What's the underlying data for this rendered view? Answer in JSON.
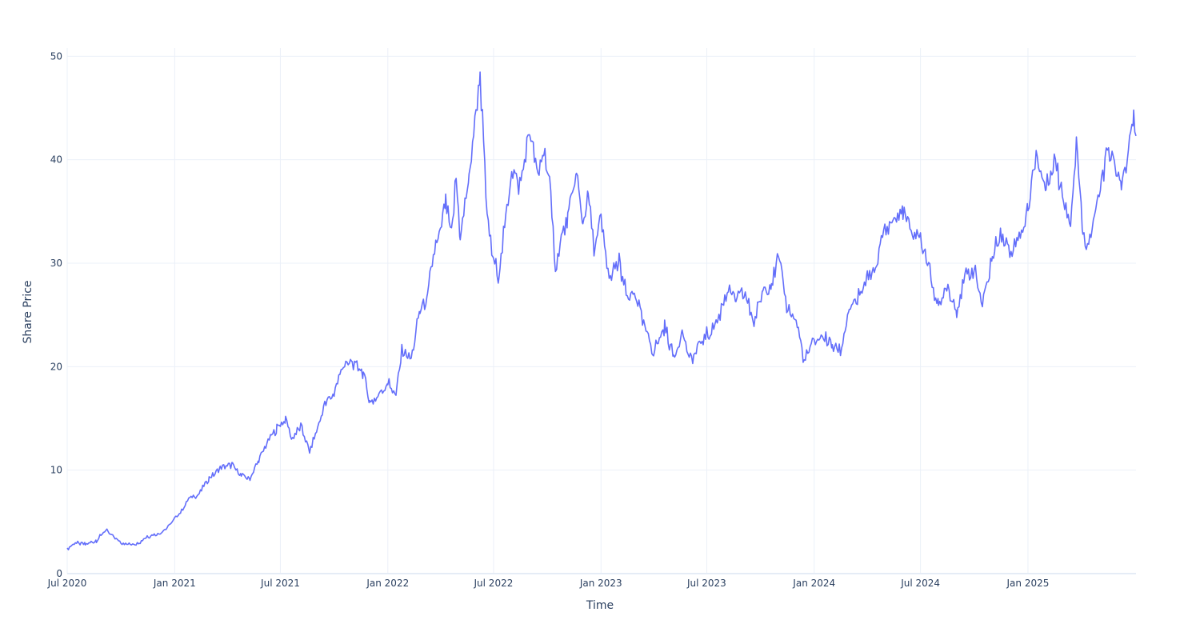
{
  "chart_data": {
    "type": "line",
    "title": "",
    "xlabel": "Time",
    "ylabel": "Share Price",
    "xlim": [
      "2020-07-01",
      "2025-07-01"
    ],
    "ylim": [
      0,
      50.8
    ],
    "grid": true,
    "legend": "none",
    "x_ticks": [
      {
        "date": "2020-07-01",
        "label": "Jul 2020"
      },
      {
        "date": "2021-01-01",
        "label": "Jan 2021"
      },
      {
        "date": "2021-07-01",
        "label": "Jul 2021"
      },
      {
        "date": "2022-01-01",
        "label": "Jan 2022"
      },
      {
        "date": "2022-07-01",
        "label": "Jul 2022"
      },
      {
        "date": "2023-01-01",
        "label": "Jan 2023"
      },
      {
        "date": "2023-07-01",
        "label": "Jul 2023"
      },
      {
        "date": "2024-01-01",
        "label": "Jan 2024"
      },
      {
        "date": "2024-07-01",
        "label": "Jul 2024"
      },
      {
        "date": "2025-01-01",
        "label": "Jan 2025"
      }
    ],
    "y_ticks": [
      {
        "value": 0,
        "label": "0"
      },
      {
        "value": 10,
        "label": "10"
      },
      {
        "value": 20,
        "label": "20"
      },
      {
        "value": 30,
        "label": "30"
      },
      {
        "value": 40,
        "label": "40"
      },
      {
        "value": 50,
        "label": "50"
      }
    ],
    "series": [
      {
        "color": "#636efa",
        "points": [
          [
            "2020-07-01",
            2.4
          ],
          [
            "2020-07-15",
            3.0
          ],
          [
            "2020-08-01",
            2.8
          ],
          [
            "2020-08-20",
            3.2
          ],
          [
            "2020-09-05",
            4.2
          ],
          [
            "2020-09-15",
            3.7
          ],
          [
            "2020-10-01",
            3.0
          ],
          [
            "2020-10-15",
            2.8
          ],
          [
            "2020-11-01",
            3.0
          ],
          [
            "2020-11-15",
            3.6
          ],
          [
            "2020-12-01",
            3.8
          ],
          [
            "2020-12-15",
            4.2
          ],
          [
            "2021-01-01",
            5.3
          ],
          [
            "2021-01-15",
            6.2
          ],
          [
            "2021-01-25",
            7.3
          ],
          [
            "2021-02-10",
            7.6
          ],
          [
            "2021-03-01",
            9.2
          ],
          [
            "2021-03-20",
            10.2
          ],
          [
            "2021-04-10",
            10.5
          ],
          [
            "2021-04-25",
            9.5
          ],
          [
            "2021-05-10",
            9.2
          ],
          [
            "2021-05-25",
            11.0
          ],
          [
            "2021-06-10",
            12.8
          ],
          [
            "2021-06-25",
            14.0
          ],
          [
            "2021-07-10",
            15.0
          ],
          [
            "2021-07-20",
            13.0
          ],
          [
            "2021-08-05",
            14.2
          ],
          [
            "2021-08-20",
            11.8
          ],
          [
            "2021-09-01",
            13.8
          ],
          [
            "2021-09-15",
            16.4
          ],
          [
            "2021-10-01",
            17.5
          ],
          [
            "2021-10-15",
            20.0
          ],
          [
            "2021-11-01",
            20.5
          ],
          [
            "2021-11-20",
            19.5
          ],
          [
            "2021-12-01",
            16.5
          ],
          [
            "2021-12-15",
            17.2
          ],
          [
            "2022-01-01",
            18.5
          ],
          [
            "2022-01-15",
            17.2
          ],
          [
            "2022-01-25",
            21.5
          ],
          [
            "2022-02-10",
            20.8
          ],
          [
            "2022-02-25",
            25.5
          ],
          [
            "2022-03-10",
            26.5
          ],
          [
            "2022-03-20",
            31.0
          ],
          [
            "2022-04-01",
            33.0
          ],
          [
            "2022-04-10",
            36.0
          ],
          [
            "2022-04-20",
            32.5
          ],
          [
            "2022-04-28",
            38.5
          ],
          [
            "2022-05-05",
            32.5
          ],
          [
            "2022-05-20",
            38.0
          ],
          [
            "2022-06-01",
            45.0
          ],
          [
            "2022-06-08",
            48.3
          ],
          [
            "2022-06-20",
            34.5
          ],
          [
            "2022-07-01",
            30.0
          ],
          [
            "2022-07-10",
            29.0
          ],
          [
            "2022-07-20",
            33.5
          ],
          [
            "2022-08-01",
            39.0
          ],
          [
            "2022-08-15",
            37.5
          ],
          [
            "2022-09-01",
            43.0
          ],
          [
            "2022-09-15",
            38.0
          ],
          [
            "2022-09-25",
            41.0
          ],
          [
            "2022-10-05",
            37.5
          ],
          [
            "2022-10-15",
            29.5
          ],
          [
            "2022-10-25",
            32.5
          ],
          [
            "2022-11-05",
            34.0
          ],
          [
            "2022-11-20",
            39.0
          ],
          [
            "2022-12-01",
            34.0
          ],
          [
            "2022-12-10",
            36.5
          ],
          [
            "2022-12-20",
            31.5
          ],
          [
            "2023-01-01",
            34.0
          ],
          [
            "2023-01-15",
            28.5
          ],
          [
            "2023-02-01",
            30.0
          ],
          [
            "2023-02-15",
            26.5
          ],
          [
            "2023-03-01",
            27.0
          ],
          [
            "2023-03-15",
            24.0
          ],
          [
            "2023-04-01",
            21.5
          ],
          [
            "2023-04-20",
            23.8
          ],
          [
            "2023-05-05",
            21.0
          ],
          [
            "2023-05-20",
            23.5
          ],
          [
            "2023-06-01",
            20.5
          ],
          [
            "2023-06-15",
            21.8
          ],
          [
            "2023-07-01",
            23.0
          ],
          [
            "2023-07-20",
            24.5
          ],
          [
            "2023-08-05",
            27.5
          ],
          [
            "2023-08-20",
            26.5
          ],
          [
            "2023-09-05",
            27.0
          ],
          [
            "2023-09-20",
            24.0
          ],
          [
            "2023-10-05",
            27.5
          ],
          [
            "2023-10-20",
            28.0
          ],
          [
            "2023-11-01",
            30.5
          ],
          [
            "2023-11-15",
            26.0
          ],
          [
            "2023-12-01",
            24.5
          ],
          [
            "2023-12-15",
            20.5
          ],
          [
            "2024-01-01",
            22.5
          ],
          [
            "2024-01-15",
            23.0
          ],
          [
            "2024-02-01",
            22.0
          ],
          [
            "2024-02-15",
            21.5
          ],
          [
            "2024-03-01",
            25.5
          ],
          [
            "2024-03-15",
            26.5
          ],
          [
            "2024-04-01",
            28.5
          ],
          [
            "2024-04-15",
            29.5
          ],
          [
            "2024-05-01",
            33.5
          ],
          [
            "2024-05-15",
            34.0
          ],
          [
            "2024-06-01",
            35.0
          ],
          [
            "2024-06-15",
            33.0
          ],
          [
            "2024-07-01",
            32.5
          ],
          [
            "2024-07-15",
            29.5
          ],
          [
            "2024-08-01",
            25.5
          ],
          [
            "2024-08-15",
            28.0
          ],
          [
            "2024-09-01",
            25.5
          ],
          [
            "2024-09-15",
            28.5
          ],
          [
            "2024-10-01",
            29.5
          ],
          [
            "2024-10-15",
            26.0
          ],
          [
            "2024-11-01",
            30.5
          ],
          [
            "2024-11-15",
            33.0
          ],
          [
            "2024-12-01",
            31.0
          ],
          [
            "2024-12-15",
            32.5
          ],
          [
            "2025-01-01",
            35.0
          ],
          [
            "2025-01-15",
            40.5
          ],
          [
            "2025-02-01",
            37.0
          ],
          [
            "2025-02-15",
            40.0
          ],
          [
            "2025-03-01",
            36.5
          ],
          [
            "2025-03-15",
            34.0
          ],
          [
            "2025-03-25",
            41.5
          ],
          [
            "2025-04-05",
            33.0
          ],
          [
            "2025-04-15",
            32.0
          ],
          [
            "2025-05-01",
            36.0
          ],
          [
            "2025-05-15",
            40.5
          ],
          [
            "2025-06-01",
            39.5
          ],
          [
            "2025-06-10",
            37.0
          ],
          [
            "2025-06-20",
            40.5
          ],
          [
            "2025-07-01",
            43.8
          ],
          [
            "2025-07-05",
            42.3
          ]
        ]
      }
    ]
  }
}
